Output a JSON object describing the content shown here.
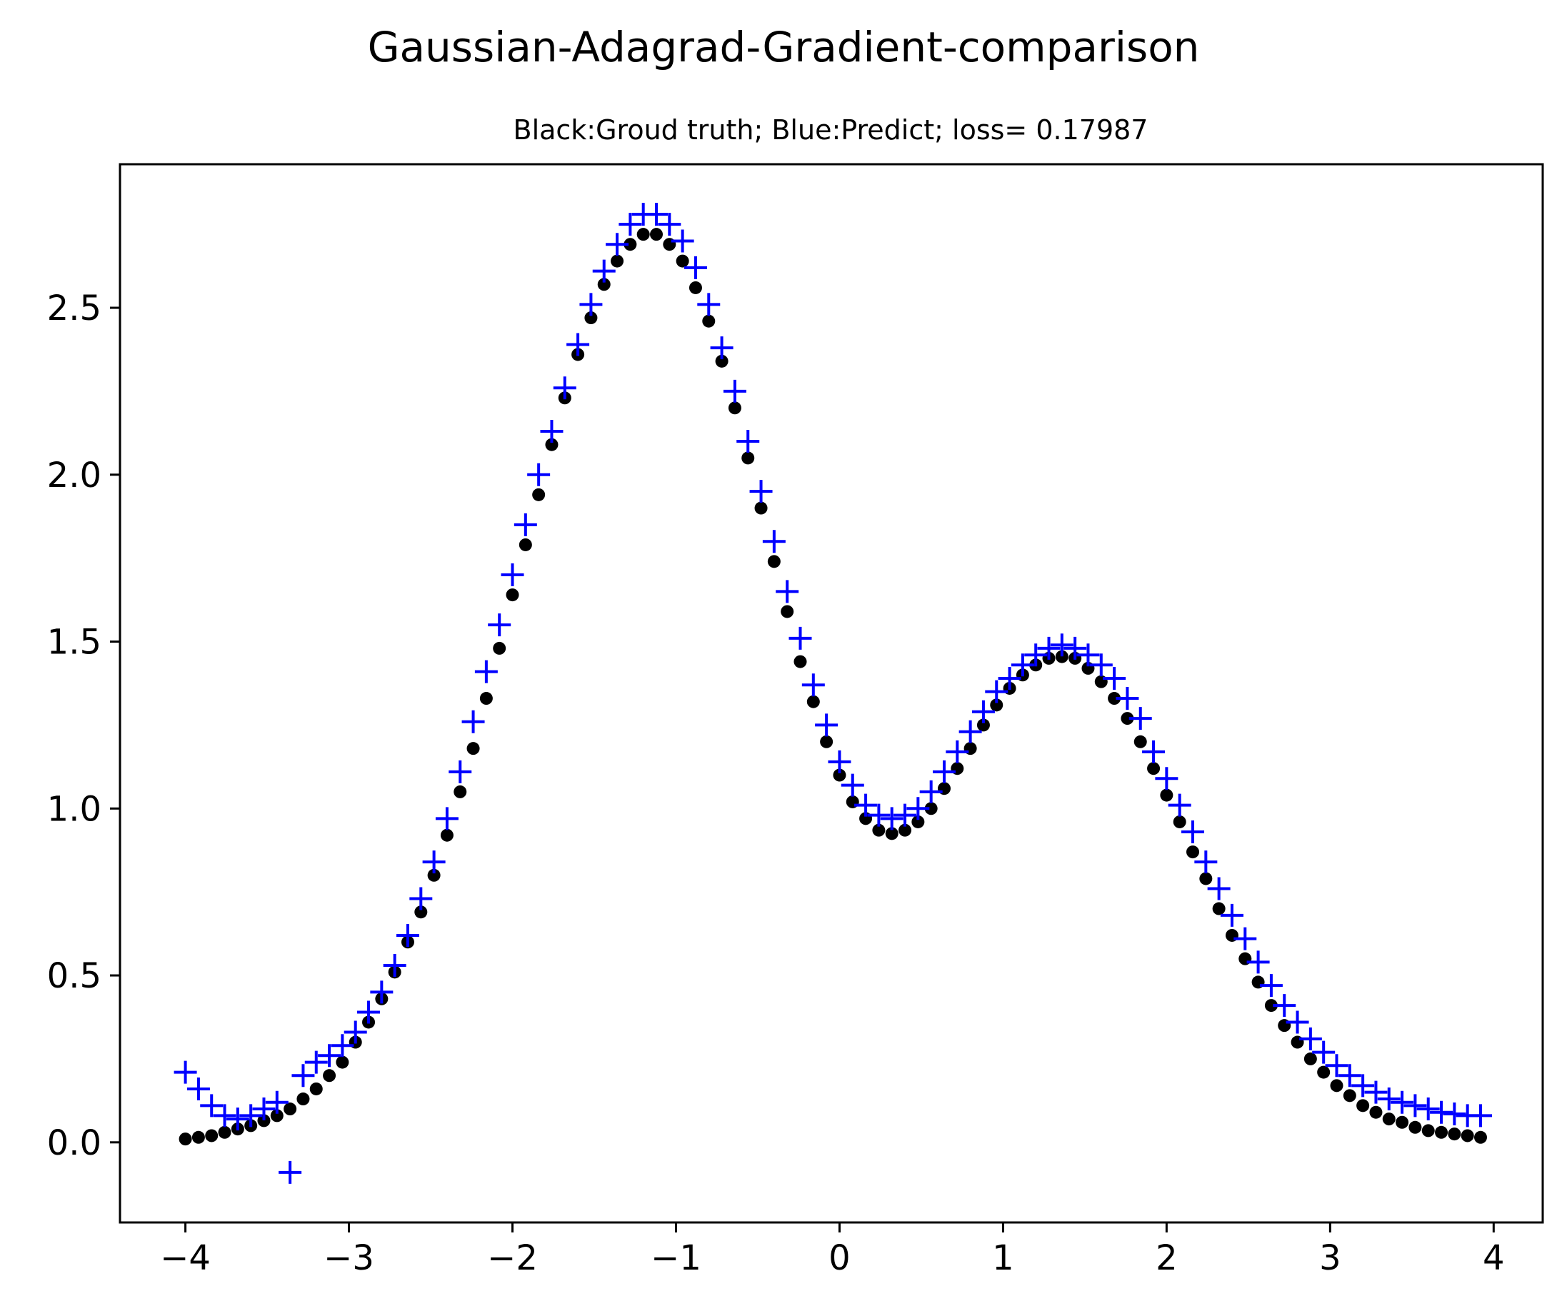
{
  "chart_data": {
    "type": "scatter",
    "title": "Gaussian-Adagrad-Gradient-comparison",
    "subtitle": "Black:Groud truth; Blue:Predict; loss= 0.17987",
    "xlabel": "",
    "ylabel": "",
    "xlim": [
      -4.4,
      4.3
    ],
    "ylim": [
      -0.24,
      2.93
    ],
    "x_ticks": [
      -4,
      -3,
      -2,
      -1,
      0,
      1,
      2,
      3,
      4
    ],
    "x_tick_labels": [
      "−4",
      "−3",
      "−2",
      "−1",
      "0",
      "1",
      "2",
      "3",
      "4"
    ],
    "y_ticks": [
      0.0,
      0.5,
      1.0,
      1.5,
      2.0,
      2.5
    ],
    "y_tick_labels": [
      "0.0",
      "0.5",
      "1.0",
      "1.5",
      "2.0",
      "2.5"
    ],
    "grid": false,
    "series": [
      {
        "name": "Groud truth",
        "color": "#000000",
        "marker": "dot",
        "x": [
          -4.0,
          -3.92,
          -3.84,
          -3.76,
          -3.68,
          -3.6,
          -3.52,
          -3.44,
          -3.36,
          -3.28,
          -3.2,
          -3.12,
          -3.04,
          -2.96,
          -2.88,
          -2.8,
          -2.72,
          -2.64,
          -2.56,
          -2.48,
          -2.4,
          -2.32,
          -2.24,
          -2.16,
          -2.08,
          -2.0,
          -1.92,
          -1.84,
          -1.76,
          -1.68,
          -1.6,
          -1.52,
          -1.44,
          -1.36,
          -1.28,
          -1.2,
          -1.12,
          -1.04,
          -0.96,
          -0.88,
          -0.8,
          -0.72,
          -0.64,
          -0.56,
          -0.48,
          -0.4,
          -0.32,
          -0.24,
          -0.16,
          -0.08,
          0.0,
          0.08,
          0.16,
          0.24,
          0.32,
          0.4,
          0.48,
          0.56,
          0.64,
          0.72,
          0.8,
          0.88,
          0.96,
          1.04,
          1.12,
          1.2,
          1.28,
          1.36,
          1.44,
          1.52,
          1.6,
          1.68,
          1.76,
          1.84,
          1.92,
          2.0,
          2.08,
          2.16,
          2.24,
          2.32,
          2.4,
          2.48,
          2.56,
          2.64,
          2.72,
          2.8,
          2.88,
          2.96,
          3.04,
          3.12,
          3.2,
          3.28,
          3.36,
          3.44,
          3.52,
          3.6,
          3.68,
          3.76,
          3.84,
          3.92
        ],
        "y": [
          0.01,
          0.015,
          0.02,
          0.03,
          0.04,
          0.05,
          0.065,
          0.08,
          0.1,
          0.13,
          0.16,
          0.2,
          0.24,
          0.3,
          0.36,
          0.43,
          0.51,
          0.6,
          0.69,
          0.8,
          0.92,
          1.05,
          1.18,
          1.33,
          1.48,
          1.64,
          1.79,
          1.94,
          2.09,
          2.23,
          2.36,
          2.47,
          2.57,
          2.64,
          2.69,
          2.72,
          2.72,
          2.69,
          2.64,
          2.56,
          2.46,
          2.34,
          2.2,
          2.05,
          1.9,
          1.74,
          1.59,
          1.44,
          1.32,
          1.2,
          1.1,
          1.02,
          0.97,
          0.935,
          0.925,
          0.935,
          0.96,
          1.0,
          1.06,
          1.12,
          1.18,
          1.25,
          1.31,
          1.36,
          1.4,
          1.43,
          1.45,
          1.455,
          1.45,
          1.42,
          1.38,
          1.33,
          1.27,
          1.2,
          1.12,
          1.04,
          0.96,
          0.87,
          0.79,
          0.7,
          0.62,
          0.55,
          0.48,
          0.41,
          0.35,
          0.3,
          0.25,
          0.21,
          0.17,
          0.14,
          0.11,
          0.09,
          0.07,
          0.06,
          0.045,
          0.035,
          0.03,
          0.025,
          0.02,
          0.015
        ]
      },
      {
        "name": "Predict",
        "color": "#0000ff",
        "marker": "plus",
        "x": [
          -4.0,
          -3.92,
          -3.84,
          -3.76,
          -3.68,
          -3.6,
          -3.52,
          -3.44,
          -3.36,
          -3.28,
          -3.2,
          -3.12,
          -3.04,
          -2.96,
          -2.88,
          -2.8,
          -2.72,
          -2.64,
          -2.56,
          -2.48,
          -2.4,
          -2.32,
          -2.24,
          -2.16,
          -2.08,
          -2.0,
          -1.92,
          -1.84,
          -1.76,
          -1.68,
          -1.6,
          -1.52,
          -1.44,
          -1.36,
          -1.28,
          -1.2,
          -1.12,
          -1.04,
          -0.96,
          -0.88,
          -0.8,
          -0.72,
          -0.64,
          -0.56,
          -0.48,
          -0.4,
          -0.32,
          -0.24,
          -0.16,
          -0.08,
          0.0,
          0.08,
          0.16,
          0.24,
          0.32,
          0.4,
          0.48,
          0.56,
          0.64,
          0.72,
          0.8,
          0.88,
          0.96,
          1.04,
          1.12,
          1.2,
          1.28,
          1.36,
          1.44,
          1.52,
          1.6,
          1.68,
          1.76,
          1.84,
          1.92,
          2.0,
          2.08,
          2.16,
          2.24,
          2.32,
          2.4,
          2.48,
          2.56,
          2.64,
          2.72,
          2.8,
          2.88,
          2.96,
          3.04,
          3.12,
          3.2,
          3.28,
          3.36,
          3.44,
          3.52,
          3.6,
          3.68,
          3.76,
          3.84,
          3.92
        ],
        "y": [
          0.21,
          0.16,
          0.11,
          0.08,
          0.07,
          0.08,
          0.1,
          0.12,
          -0.09,
          0.2,
          0.24,
          0.26,
          0.29,
          0.33,
          0.39,
          0.45,
          0.53,
          0.62,
          0.73,
          0.84,
          0.97,
          1.11,
          1.26,
          1.41,
          1.55,
          1.7,
          1.85,
          2.0,
          2.13,
          2.26,
          2.39,
          2.51,
          2.61,
          2.69,
          2.75,
          2.78,
          2.78,
          2.75,
          2.7,
          2.62,
          2.51,
          2.38,
          2.25,
          2.1,
          1.95,
          1.8,
          1.65,
          1.51,
          1.37,
          1.25,
          1.14,
          1.07,
          1.01,
          0.98,
          0.97,
          0.98,
          1.0,
          1.05,
          1.11,
          1.17,
          1.23,
          1.29,
          1.35,
          1.39,
          1.43,
          1.46,
          1.48,
          1.49,
          1.48,
          1.46,
          1.43,
          1.39,
          1.33,
          1.27,
          1.17,
          1.09,
          1.01,
          0.93,
          0.84,
          0.76,
          0.68,
          0.61,
          0.54,
          0.47,
          0.41,
          0.36,
          0.31,
          0.27,
          0.23,
          0.2,
          0.17,
          0.15,
          0.13,
          0.12,
          0.11,
          0.1,
          0.09,
          0.085,
          0.08,
          0.08
        ]
      }
    ]
  }
}
